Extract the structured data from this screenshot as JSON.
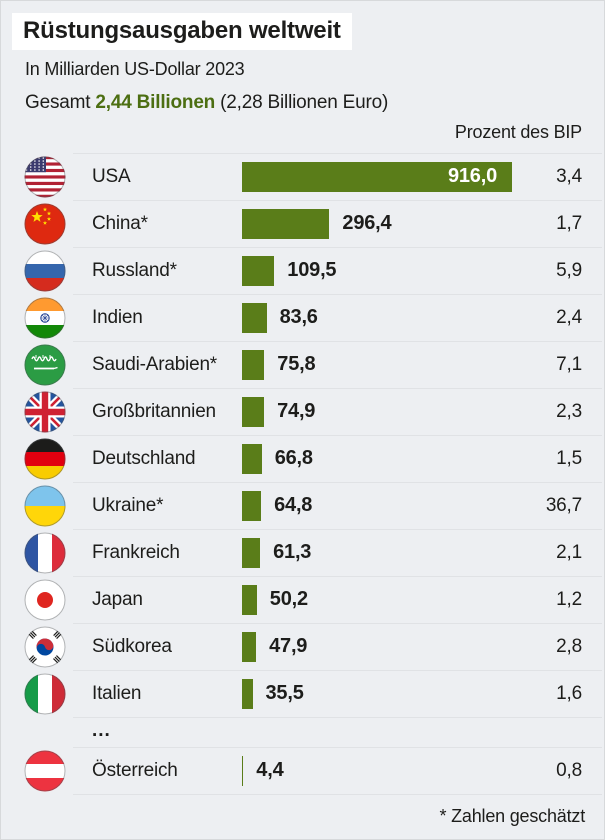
{
  "header": {
    "title": "Rüstungsausgaben weltweit",
    "subtitle": "In Milliarden US-Dollar 2023",
    "total_prefix": "Gesamt ",
    "total_value": "2,44 Billionen",
    "total_suffix": " (2,28 Billionen Euro)",
    "column_header": "Prozent des BIP"
  },
  "footer": {
    "note": "* Zahlen geschätzt"
  },
  "colors": {
    "background": "#edeff2",
    "bar_green": "#5a7d19",
    "accent_green_text": "#4c6e12",
    "text": "#1d1d1b",
    "title_box_background": "#ffffff",
    "row_divider": "#e0e2e5"
  },
  "chart_data": {
    "type": "bar",
    "orientation": "horizontal",
    "title": "Rüstungsausgaben weltweit",
    "subtitle": "In Milliarden US-Dollar 2023",
    "total_label": "Gesamt 2,44 Billionen (2,28 Billionen Euro)",
    "unit": "Milliarden US-Dollar",
    "xlim": [
      0,
      916
    ],
    "grid": false,
    "legend": false,
    "secondary_column_header": "Prozent des BIP",
    "footnote": "* Zahlen geschätzt",
    "categories": [
      "USA",
      "China*",
      "Russland*",
      "Indien",
      "Saudi-Arabien*",
      "Großbritannien",
      "Deutschland",
      "Ukraine*",
      "Frankreich",
      "Japan",
      "Südkorea",
      "Italien",
      "Österreich"
    ],
    "series": [
      {
        "name": "Ausgaben in Mrd. US-Dollar",
        "values": [
          916.0,
          296.4,
          109.5,
          83.6,
          75.8,
          74.9,
          66.8,
          64.8,
          61.3,
          50.2,
          47.9,
          35.5,
          4.4
        ]
      },
      {
        "name": "Prozent des BIP",
        "values": [
          3.4,
          1.7,
          5.9,
          2.4,
          7.1,
          2.3,
          1.5,
          36.7,
          2.1,
          1.2,
          2.8,
          1.6,
          0.8
        ]
      }
    ],
    "rows": [
      {
        "country": "USA",
        "flag": "usa",
        "value_label": "916,0",
        "value_num": 916.0,
        "bip": "3,4",
        "label_inside": true
      },
      {
        "country": "China*",
        "flag": "china",
        "value_label": "296,4",
        "value_num": 296.4,
        "bip": "1,7"
      },
      {
        "country": "Russland*",
        "flag": "russia",
        "value_label": "109,5",
        "value_num": 109.5,
        "bip": "5,9"
      },
      {
        "country": "Indien",
        "flag": "india",
        "value_label": "83,6",
        "value_num": 83.6,
        "bip": "2,4"
      },
      {
        "country": "Saudi-Arabien*",
        "flag": "saudi",
        "value_label": "75,8",
        "value_num": 75.8,
        "bip": "7,1"
      },
      {
        "country": "Großbritannien",
        "flag": "uk",
        "value_label": "74,9",
        "value_num": 74.9,
        "bip": "2,3"
      },
      {
        "country": "Deutschland",
        "flag": "germany",
        "value_label": "66,8",
        "value_num": 66.8,
        "bip": "1,5"
      },
      {
        "country": "Ukraine*",
        "flag": "ukraine",
        "value_label": "64,8",
        "value_num": 64.8,
        "bip": "36,7"
      },
      {
        "country": "Frankreich",
        "flag": "france",
        "value_label": "61,3",
        "value_num": 61.3,
        "bip": "2,1"
      },
      {
        "country": "Japan",
        "flag": "japan",
        "value_label": "50,2",
        "value_num": 50.2,
        "bip": "1,2"
      },
      {
        "country": "Südkorea",
        "flag": "skorea",
        "value_label": "47,9",
        "value_num": 47.9,
        "bip": "2,8"
      },
      {
        "country": "Italien",
        "flag": "italy",
        "value_label": "35,5",
        "value_num": 35.5,
        "bip": "1,6"
      },
      {
        "type": "ellipsis",
        "label": "..."
      },
      {
        "country": "Österreich",
        "flag": "austria",
        "value_label": "4,4",
        "value_num": 4.4,
        "bip": "0,8"
      }
    ]
  }
}
